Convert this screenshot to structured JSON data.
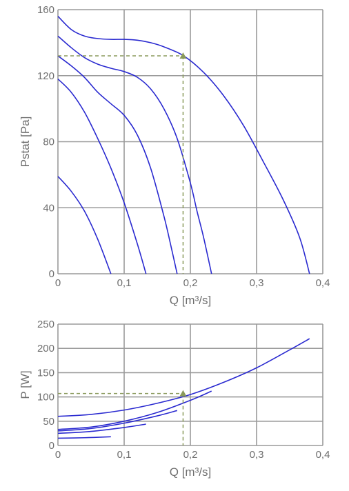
{
  "colors": {
    "curve": "#2a2ad0",
    "grid": "#9a9a9a",
    "guide": "#8a9a5b",
    "operating_point": "#8a9a5b",
    "text": "#6e6e6e"
  },
  "chart_data": [
    {
      "type": "line",
      "title": "",
      "xlabel": "Q [m³/s]",
      "ylabel": "Pstat [Pa]",
      "xlim": [
        0,
        0.4
      ],
      "ylim": [
        0,
        160
      ],
      "x_ticks": [
        0,
        0.1,
        0.2,
        0.3,
        0.4
      ],
      "x_tick_labels": [
        "0",
        "0,1",
        "0,2",
        "0,3",
        "0,4"
      ],
      "y_ticks": [
        0,
        40,
        80,
        120,
        160
      ],
      "y_tick_labels": [
        "0",
        "40",
        "80",
        "120",
        "160"
      ],
      "grid": true,
      "series": [
        {
          "x": [
            0,
            0.02,
            0.04,
            0.06,
            0.08,
            0.1,
            0.12,
            0.14,
            0.16,
            0.19,
            0.22,
            0.25,
            0.28,
            0.31,
            0.34,
            0.365,
            0.38
          ],
          "values": [
            156,
            148,
            144,
            142.5,
            142,
            142,
            141.5,
            140,
            137.5,
            132,
            122,
            108,
            90,
            68,
            45,
            22,
            0
          ]
        },
        {
          "x": [
            0,
            0.02,
            0.04,
            0.06,
            0.08,
            0.1,
            0.12,
            0.14,
            0.16,
            0.18,
            0.2,
            0.21,
            0.22,
            0.232
          ],
          "values": [
            144,
            137,
            131,
            127,
            124.5,
            122.5,
            119,
            112,
            100,
            82,
            55,
            38,
            22,
            0
          ]
        },
        {
          "x": [
            0,
            0.02,
            0.04,
            0.06,
            0.08,
            0.1,
            0.12,
            0.14,
            0.16,
            0.17,
            0.18
          ],
          "values": [
            132,
            126,
            119,
            110,
            103,
            96,
            84,
            64,
            35,
            18,
            0
          ]
        },
        {
          "x": [
            0,
            0.02,
            0.04,
            0.06,
            0.08,
            0.1,
            0.12,
            0.133
          ],
          "values": [
            118,
            110,
            98,
            82,
            64,
            43,
            18,
            0
          ]
        },
        {
          "x": [
            0,
            0.02,
            0.04,
            0.06,
            0.08
          ],
          "values": [
            59,
            50,
            38,
            21,
            0
          ]
        }
      ],
      "operating_point": {
        "x": 0.189,
        "y": 132
      }
    },
    {
      "type": "line",
      "title": "",
      "xlabel": "Q [m³/s]",
      "ylabel": "P [W]",
      "xlim": [
        0,
        0.4
      ],
      "ylim": [
        0,
        250
      ],
      "x_ticks": [
        0,
        0.1,
        0.2,
        0.3,
        0.4
      ],
      "x_tick_labels": [
        "0",
        "0,1",
        "0,2",
        "0,3",
        "0,4"
      ],
      "y_ticks": [
        0,
        50,
        100,
        150,
        200,
        250
      ],
      "y_tick_labels": [
        "0",
        "50",
        "100",
        "150",
        "200",
        "250"
      ],
      "grid": true,
      "series": [
        {
          "x": [
            0,
            0.05,
            0.1,
            0.15,
            0.2,
            0.25,
            0.3,
            0.35,
            0.38
          ],
          "values": [
            60,
            64,
            73,
            87,
            105,
            130,
            160,
            197,
            220
          ]
        },
        {
          "x": [
            0,
            0.05,
            0.1,
            0.15,
            0.2,
            0.232
          ],
          "values": [
            33,
            38,
            50,
            68,
            93,
            112
          ]
        },
        {
          "x": [
            0,
            0.05,
            0.1,
            0.15,
            0.18
          ],
          "values": [
            30,
            35,
            46,
            61,
            72
          ]
        },
        {
          "x": [
            0,
            0.05,
            0.1,
            0.133
          ],
          "values": [
            25,
            29,
            37,
            44
          ]
        },
        {
          "x": [
            0,
            0.04,
            0.08
          ],
          "values": [
            15,
            16,
            18
          ]
        }
      ],
      "operating_point": {
        "x": 0.189,
        "y": 107
      }
    }
  ]
}
